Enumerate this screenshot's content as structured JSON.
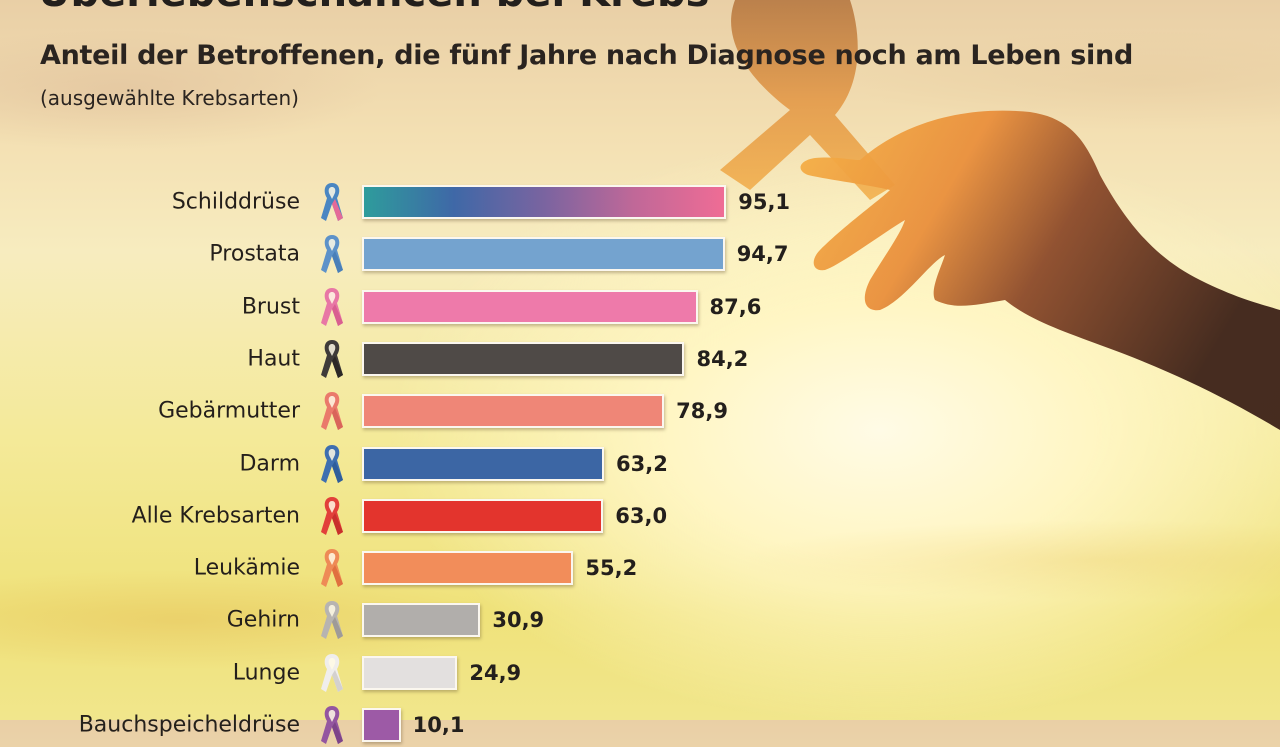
{
  "header": {
    "title": "Überlebenschancen bei Krebs",
    "subtitle": "Anteil der Betroffenen, die fünf Jahre nach Diagnose noch am Leben sind",
    "note": "(ausgewählte Krebsarten)"
  },
  "chart_data": {
    "type": "bar",
    "orientation": "horizontal",
    "title": "Überlebenschancen bei Krebs",
    "subtitle": "Anteil der Betroffenen, die fünf Jahre nach Diagnose noch am Leben sind",
    "note": "(ausgewählte Krebsarten)",
    "xlabel": "",
    "ylabel": "",
    "unit": "%",
    "xlim": [
      0,
      100
    ],
    "grid": false,
    "legend": "none",
    "categories": [
      "Schilddrüse",
      "Prostata",
      "Brust",
      "Haut",
      "Gebärmutter",
      "Darm",
      "Alle Krebsarten",
      "Leukämie",
      "Gehirn",
      "Lunge",
      "Bauchspeicheldrüse"
    ],
    "values": [
      95.1,
      94.7,
      87.6,
      84.2,
      78.9,
      63.2,
      63.0,
      55.2,
      30.9,
      24.9,
      10.1
    ],
    "value_labels": [
      "95,1",
      "94,7",
      "87,6",
      "84,2",
      "78,9",
      "63,2",
      "63,0",
      "55,2",
      "30,9",
      "24,9",
      "10,1"
    ],
    "colors": [
      "gradient",
      "#74a3cf",
      "#ee7aaa",
      "#4f4a47",
      "#ef8677",
      "#3c66a4",
      "#e3342d",
      "#f28d5a",
      "#b1aeab",
      "#e3e0df",
      "#9d5aa6"
    ],
    "gradient_colors": [
      "#2e9c9c",
      "#3f68a7",
      "#7a64a0",
      "#c06898",
      "#ef6c95"
    ],
    "ribbon_colors": [
      [
        "#4a86c2",
        "#e56a98"
      ],
      [
        "#5d92c9",
        "#4a7fb8"
      ],
      [
        "#e877a5",
        "#d95f90"
      ],
      [
        "#3f3b39",
        "#2c2826"
      ],
      [
        "#ea7a6b",
        "#d9655a"
      ],
      [
        "#3e6fb0",
        "#2f5d9a"
      ],
      [
        "#e2403a",
        "#c8302c"
      ],
      [
        "#ee8a56",
        "#e0703f"
      ],
      [
        "#b7b4b1",
        "#9f9b98"
      ],
      [
        "#f0eeec",
        "#d4d1cf"
      ],
      [
        "#9456a0",
        "#7d4589"
      ]
    ]
  }
}
